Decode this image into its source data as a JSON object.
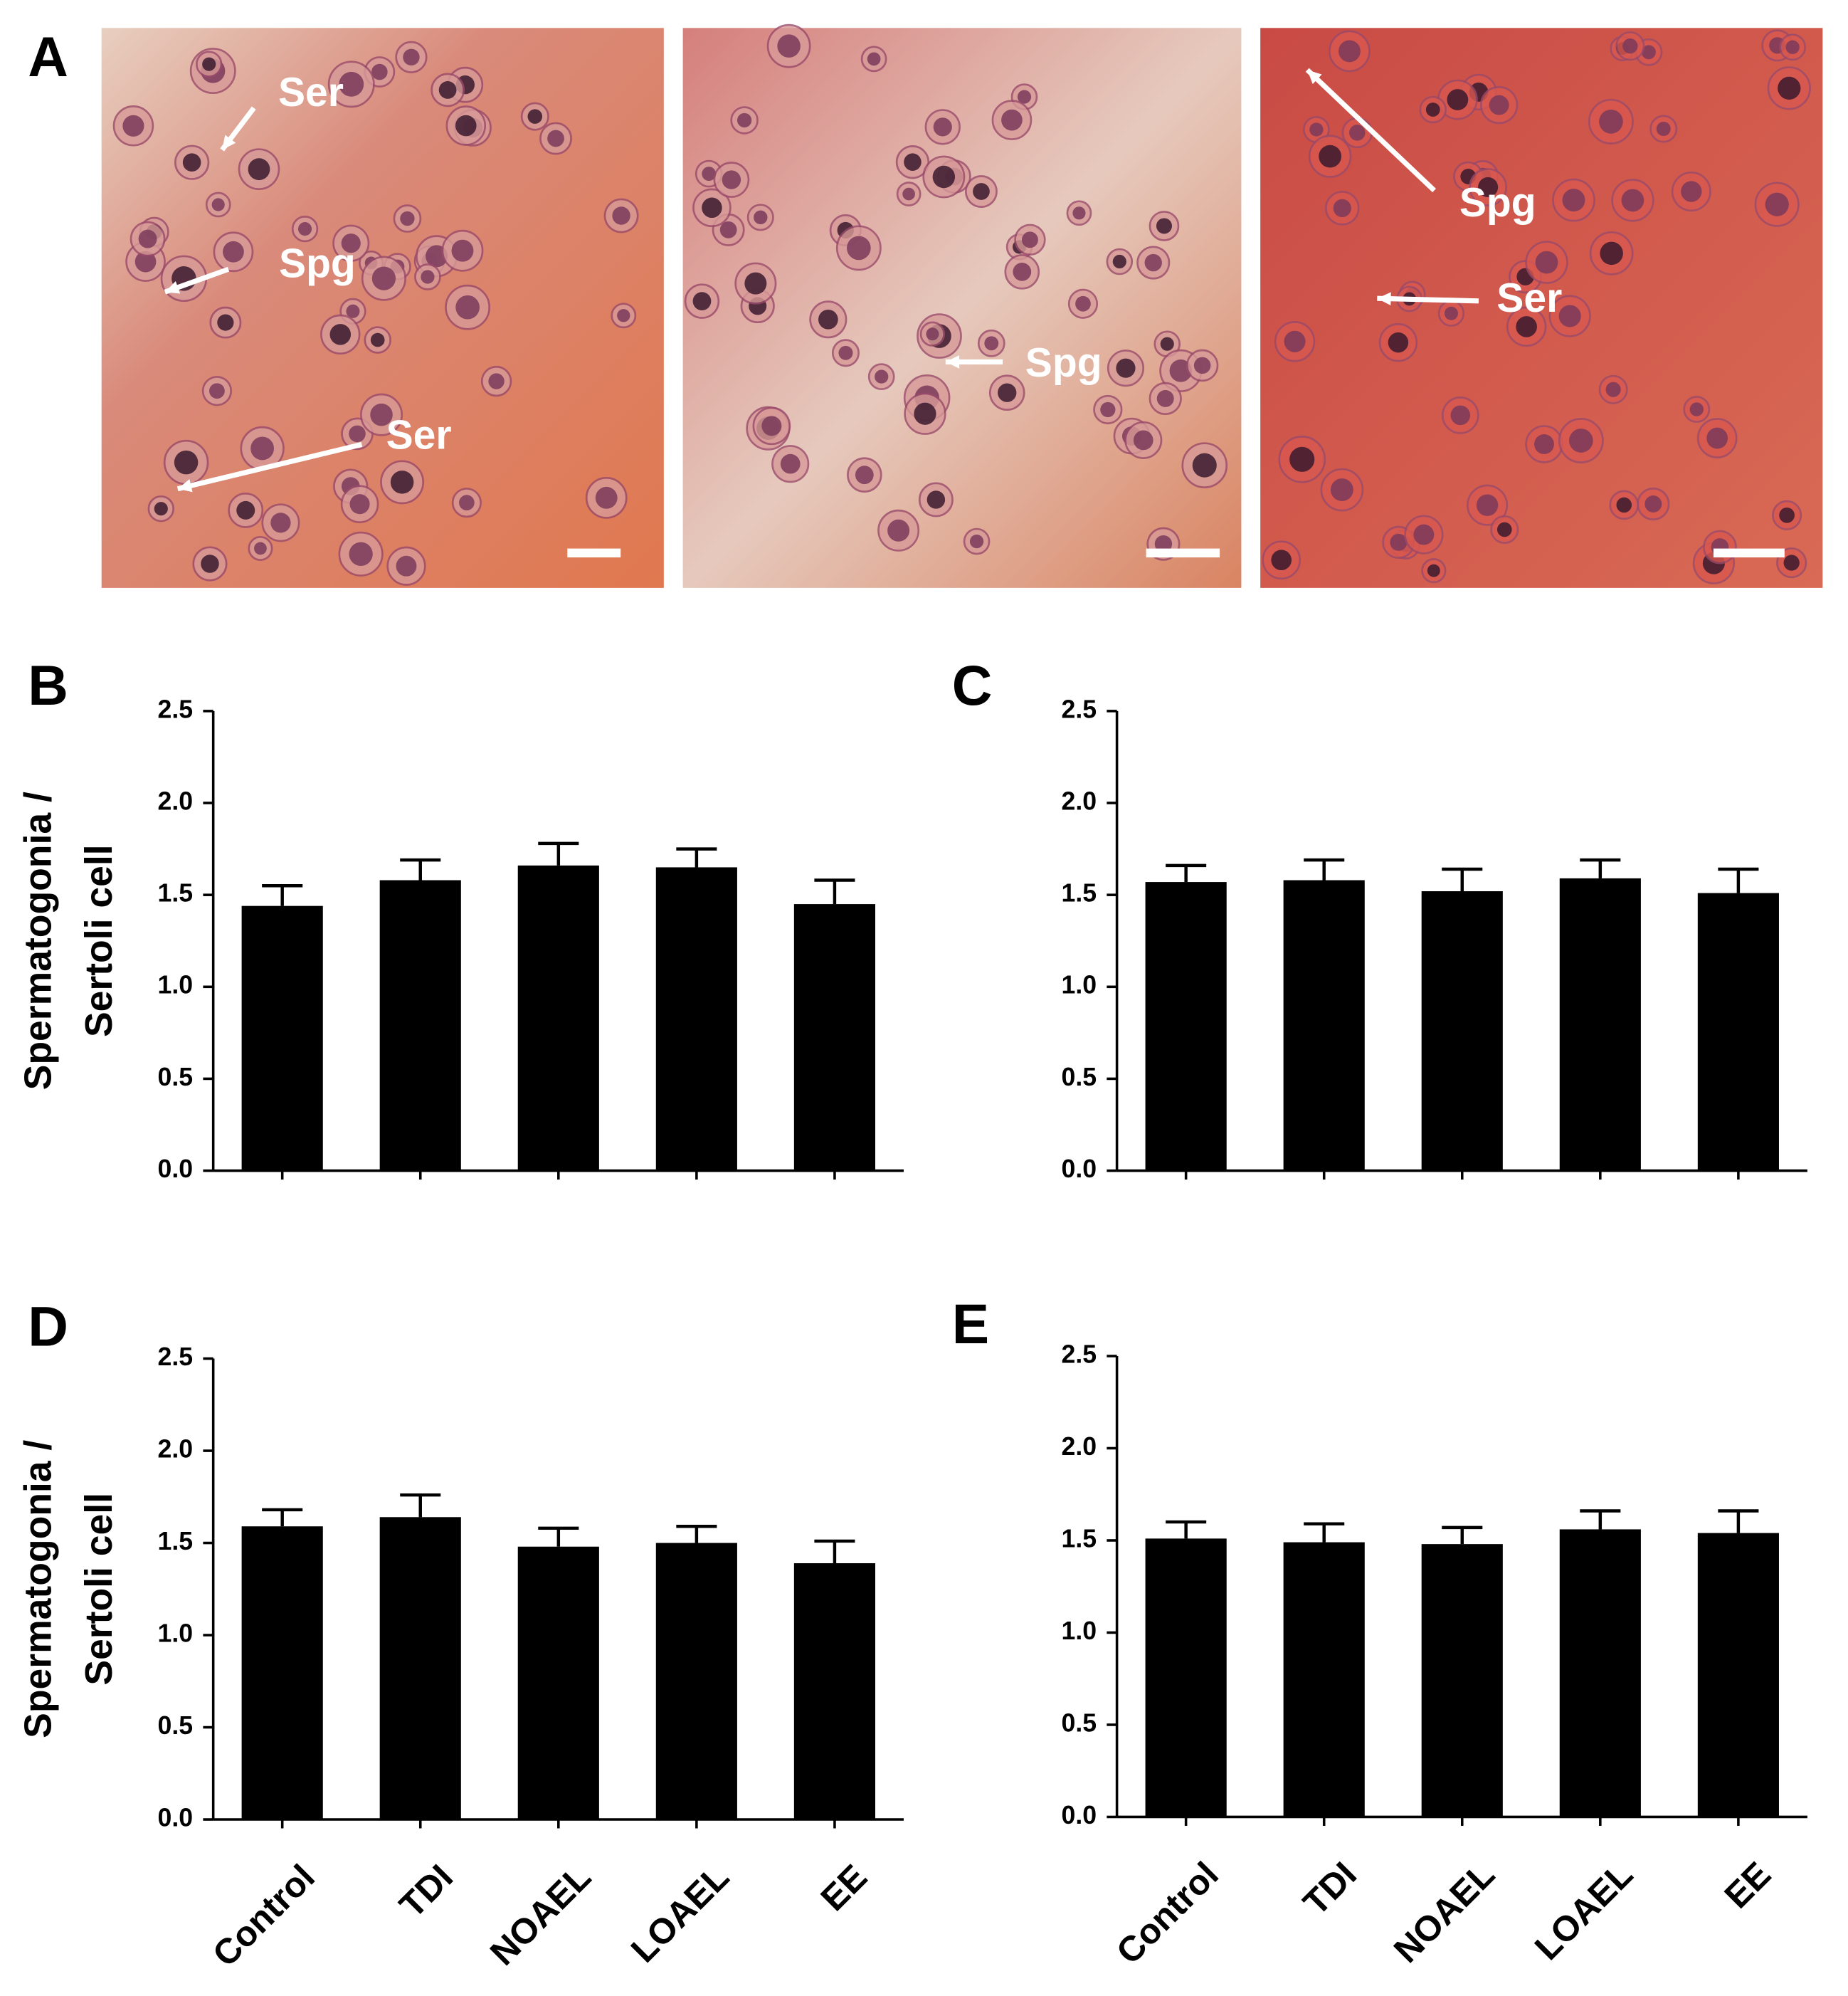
{
  "panel_a": {
    "label": "A",
    "annotations": [
      [
        "Ser",
        "Spg",
        "Ser"
      ],
      [
        "Spg"
      ],
      [
        "Spg",
        "Ser"
      ]
    ]
  },
  "chart_data": [
    {
      "type": "bar",
      "panel": "B",
      "ylabel": [
        "Spermatogonia /",
        "Sertoli cell"
      ],
      "color": "#000000",
      "values": [
        1.44,
        1.58,
        1.66,
        1.65,
        1.45
      ],
      "errors": [
        0.11,
        0.11,
        0.12,
        0.1,
        0.13
      ],
      "ylim": [
        0,
        2.5
      ],
      "yticks": [
        {
          "value": 0,
          "label": "0.0"
        },
        0.5,
        {
          "value": 1,
          "label": "1.0"
        },
        1.5,
        {
          "value": 2,
          "label": "2.0"
        },
        2.5
      ]
    },
    {
      "type": "bar",
      "panel": "C",
      "color": "#000000",
      "values": [
        1.57,
        1.58,
        1.52,
        1.59,
        1.51
      ],
      "errors": [
        0.09,
        0.11,
        0.12,
        0.1,
        0.13
      ],
      "ylim": [
        0,
        2.5
      ],
      "yticks": [
        {
          "value": 0,
          "label": "0.0"
        },
        0.5,
        {
          "value": 1,
          "label": "1.0"
        },
        1.5,
        {
          "value": 2,
          "label": "2.0"
        },
        2.5
      ]
    },
    {
      "type": "bar",
      "panel": "D",
      "ylabel": [
        "Spermatogonia /",
        "Sertoli cell"
      ],
      "color": "#000000",
      "categories": [
        "Control",
        "TDI",
        "NOAEL",
        "LOAEL",
        "EE"
      ],
      "values": [
        1.59,
        1.64,
        1.48,
        1.5,
        1.39
      ],
      "errors": [
        0.09,
        0.12,
        0.1,
        0.09,
        0.12
      ],
      "ylim": [
        0,
        2.5
      ],
      "yticks": [
        {
          "value": 0,
          "label": "0.0"
        },
        0.5,
        {
          "value": 1,
          "label": "1.0"
        },
        1.5,
        {
          "value": 2,
          "label": "2.0"
        },
        2.5
      ]
    },
    {
      "type": "bar",
      "panel": "E",
      "color": "#000000",
      "categories": [
        "Control",
        "TDI",
        "NOAEL",
        "LOAEL",
        "EE"
      ],
      "values": [
        1.51,
        1.49,
        1.48,
        1.56,
        1.54
      ],
      "errors": [
        0.09,
        0.1,
        0.09,
        0.1,
        0.12
      ],
      "ylim": [
        0,
        2.5
      ],
      "yticks": [
        {
          "value": 0,
          "label": "0.0"
        },
        0.5,
        {
          "value": 1,
          "label": "1.0"
        },
        1.5,
        {
          "value": 2,
          "label": "2.0"
        },
        2.5
      ]
    }
  ]
}
